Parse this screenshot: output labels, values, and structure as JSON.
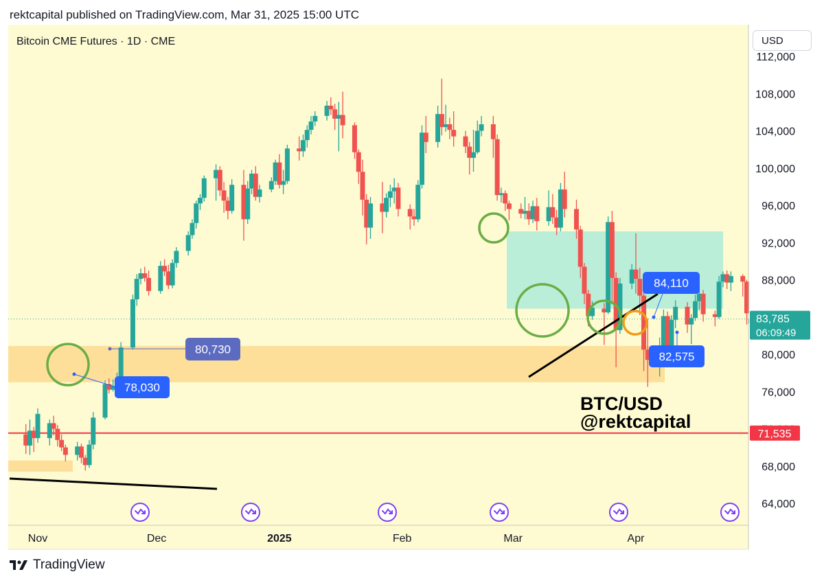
{
  "header": {
    "publish_line": "rektcapital published on TradingView.com, Mar 31, 2025 15:00 UTC"
  },
  "footer": {
    "brand": "TradingView"
  },
  "chart_data": {
    "type": "candlestick",
    "title": "Bitcoin CME Futures · 1D · CME",
    "currency_button": "USD",
    "background": "#fefbd3",
    "y_axis": {
      "range": [
        61000,
        114000
      ],
      "ticks": [
        64000,
        68000,
        72000,
        76000,
        80000,
        84000,
        88000,
        92000,
        96000,
        100000,
        104000,
        108000,
        112000
      ],
      "tick_labels": [
        "64,000",
        "68,000",
        "72,000",
        "76,000",
        "80,000",
        "84,000",
        "88,000",
        "92,000",
        "96,000",
        "100,000",
        "104,000",
        "108,000",
        "112,000"
      ]
    },
    "x_axis": {
      "labels": [
        {
          "text": "Nov",
          "date": "2024-11-01",
          "bold": false
        },
        {
          "text": "Dec",
          "date": "2024-12-01",
          "bold": false
        },
        {
          "text": "2025",
          "date": "2025-01-01",
          "bold": true
        },
        {
          "text": "Feb",
          "date": "2025-02-01",
          "bold": false
        },
        {
          "text": "Mar",
          "date": "2025-03-01",
          "bold": false
        },
        {
          "text": "Apr",
          "date": "2025-04-01",
          "bold": false
        }
      ]
    },
    "candles": [
      {
        "date": "2024-10-29",
        "o": 71400,
        "h": 72500,
        "c": 70200,
        "l": 69300
      },
      {
        "date": "2024-10-30",
        "o": 70200,
        "h": 73000,
        "c": 71800,
        "l": 69200
      },
      {
        "date": "2024-10-31",
        "o": 71800,
        "h": 72200,
        "c": 71000,
        "l": 69500
      },
      {
        "date": "2024-11-01",
        "o": 71000,
        "h": 74200,
        "c": 73600,
        "l": 70500
      },
      {
        "date": "2024-11-04",
        "o": 71000,
        "h": 73000,
        "c": 72600,
        "l": 70200
      },
      {
        "date": "2024-11-05",
        "o": 72600,
        "h": 73400,
        "c": 72000,
        "l": 71300
      },
      {
        "date": "2024-11-06",
        "o": 72000,
        "h": 72400,
        "c": 70800,
        "l": 70100
      },
      {
        "date": "2024-11-07",
        "o": 70800,
        "h": 71400,
        "c": 70000,
        "l": 69600
      },
      {
        "date": "2024-11-08",
        "o": 70000,
        "h": 70300,
        "c": 69200,
        "l": 68500
      },
      {
        "date": "2024-11-11",
        "o": 69200,
        "h": 70600,
        "c": 70100,
        "l": 68600
      },
      {
        "date": "2024-11-12",
        "o": 70100,
        "h": 70400,
        "c": 68900,
        "l": 68300
      },
      {
        "date": "2024-11-13",
        "o": 68900,
        "h": 69200,
        "c": 68100,
        "l": 67500
      },
      {
        "date": "2024-11-14",
        "o": 68100,
        "h": 70800,
        "c": 70300,
        "l": 67800
      },
      {
        "date": "2024-11-15",
        "o": 70300,
        "h": 73800,
        "c": 73200,
        "l": 69800
      },
      {
        "date": "2024-11-18",
        "o": 73200,
        "h": 77200,
        "c": 76800,
        "l": 73000
      },
      {
        "date": "2024-11-19",
        "o": 76800,
        "h": 77400,
        "c": 76200,
        "l": 75800
      },
      {
        "date": "2024-11-20",
        "o": 76200,
        "h": 77300,
        "c": 76600,
        "l": 76000
      },
      {
        "date": "2024-11-21",
        "o": 76600,
        "h": 78030,
        "c": 77100,
        "l": 76200
      },
      {
        "date": "2024-11-22",
        "o": 77100,
        "h": 81300,
        "c": 80730,
        "l": 76900
      },
      {
        "date": "2024-11-25",
        "o": 80730,
        "h": 86400,
        "c": 85900,
        "l": 80500
      },
      {
        "date": "2024-11-26",
        "o": 85900,
        "h": 88600,
        "c": 88100,
        "l": 85200
      },
      {
        "date": "2024-11-27",
        "o": 88100,
        "h": 89200,
        "c": 88700,
        "l": 87500
      },
      {
        "date": "2024-11-28",
        "o": 88700,
        "h": 89400,
        "c": 88200,
        "l": 87800
      },
      {
        "date": "2024-11-29",
        "o": 88200,
        "h": 89000,
        "c": 86800,
        "l": 86300
      },
      {
        "date": "2024-12-02",
        "o": 86800,
        "h": 90000,
        "c": 89500,
        "l": 86500
      },
      {
        "date": "2024-12-03",
        "o": 89500,
        "h": 90200,
        "c": 88900,
        "l": 88400
      },
      {
        "date": "2024-12-04",
        "o": 88900,
        "h": 89600,
        "c": 87400,
        "l": 87000
      },
      {
        "date": "2024-12-05",
        "o": 87400,
        "h": 90200,
        "c": 89800,
        "l": 87100
      },
      {
        "date": "2024-12-06",
        "o": 89800,
        "h": 91500,
        "c": 91100,
        "l": 89300
      },
      {
        "date": "2024-12-09",
        "o": 91100,
        "h": 93200,
        "c": 92800,
        "l": 90600
      },
      {
        "date": "2024-12-10",
        "o": 92800,
        "h": 94500,
        "c": 94100,
        "l": 92400
      },
      {
        "date": "2024-12-11",
        "o": 94100,
        "h": 96500,
        "c": 96200,
        "l": 93500
      },
      {
        "date": "2024-12-12",
        "o": 96200,
        "h": 97200,
        "c": 96800,
        "l": 95500
      },
      {
        "date": "2024-12-13",
        "o": 96800,
        "h": 99200,
        "c": 98900,
        "l": 96400
      },
      {
        "date": "2024-12-16",
        "o": 98900,
        "h": 100400,
        "c": 99800,
        "l": 96500
      },
      {
        "date": "2024-12-17",
        "o": 99800,
        "h": 100200,
        "c": 97600,
        "l": 97000
      },
      {
        "date": "2024-12-18",
        "o": 97600,
        "h": 98500,
        "c": 96500,
        "l": 95200
      },
      {
        "date": "2024-12-19",
        "o": 96500,
        "h": 96900,
        "c": 95400,
        "l": 94500
      },
      {
        "date": "2024-12-20",
        "o": 95400,
        "h": 98800,
        "c": 98200,
        "l": 95100
      },
      {
        "date": "2024-12-23",
        "o": 98200,
        "h": 99800,
        "c": 94500,
        "l": 92200
      },
      {
        "date": "2024-12-24",
        "o": 94500,
        "h": 98600,
        "c": 97800,
        "l": 94000
      },
      {
        "date": "2024-12-25",
        "o": 97800,
        "h": 99800,
        "c": 99400,
        "l": 97200
      },
      {
        "date": "2024-12-26",
        "o": 99400,
        "h": 100200,
        "c": 96900,
        "l": 96500
      },
      {
        "date": "2024-12-27",
        "o": 96900,
        "h": 98200,
        "c": 97700,
        "l": 96300
      },
      {
        "date": "2024-12-30",
        "o": 97700,
        "h": 99000,
        "c": 98600,
        "l": 97400
      },
      {
        "date": "2024-12-31",
        "o": 98600,
        "h": 100900,
        "c": 100600,
        "l": 98200
      },
      {
        "date": "2025-01-01",
        "o": 100600,
        "h": 101500,
        "c": 98200,
        "l": 97800
      },
      {
        "date": "2025-01-02",
        "o": 98200,
        "h": 99800,
        "c": 98600,
        "l": 97200
      },
      {
        "date": "2025-01-03",
        "o": 98600,
        "h": 102500,
        "c": 102100,
        "l": 98300
      },
      {
        "date": "2025-01-06",
        "o": 102100,
        "h": 103400,
        "c": 101800,
        "l": 100800
      },
      {
        "date": "2025-01-07",
        "o": 101800,
        "h": 103600,
        "c": 103000,
        "l": 101200
      },
      {
        "date": "2025-01-08",
        "o": 103000,
        "h": 104600,
        "c": 104100,
        "l": 102200
      },
      {
        "date": "2025-01-09",
        "o": 104100,
        "h": 105600,
        "c": 105000,
        "l": 103600
      },
      {
        "date": "2025-01-10",
        "o": 105000,
        "h": 106100,
        "c": 105600,
        "l": 104500
      },
      {
        "date": "2025-01-13",
        "o": 105600,
        "h": 107200,
        "c": 106700,
        "l": 105100
      },
      {
        "date": "2025-01-14",
        "o": 106700,
        "h": 107600,
        "c": 106300,
        "l": 105700
      },
      {
        "date": "2025-01-15",
        "o": 106300,
        "h": 106900,
        "c": 105300,
        "l": 104100
      },
      {
        "date": "2025-01-16",
        "o": 105300,
        "h": 107100,
        "c": 105700,
        "l": 101800
      },
      {
        "date": "2025-01-17",
        "o": 105700,
        "h": 108200,
        "c": 104600,
        "l": 103200
      },
      {
        "date": "2025-01-20",
        "o": 104600,
        "h": 104900,
        "c": 101700,
        "l": 101000
      },
      {
        "date": "2025-01-21",
        "o": 101700,
        "h": 102000,
        "c": 99600,
        "l": 98300
      },
      {
        "date": "2025-01-22",
        "o": 99600,
        "h": 100900,
        "c": 96600,
        "l": 94900
      },
      {
        "date": "2025-01-23",
        "o": 96600,
        "h": 97200,
        "c": 93600,
        "l": 91800
      },
      {
        "date": "2025-01-24",
        "o": 93600,
        "h": 96900,
        "c": 96200,
        "l": 92400
      },
      {
        "date": "2025-01-27",
        "o": 96200,
        "h": 98500,
        "c": 95300,
        "l": 93000
      },
      {
        "date": "2025-01-28",
        "o": 95300,
        "h": 97300,
        "c": 96800,
        "l": 94700
      },
      {
        "date": "2025-01-29",
        "o": 96800,
        "h": 98200,
        "c": 97500,
        "l": 95800
      },
      {
        "date": "2025-01-30",
        "o": 97500,
        "h": 98900,
        "c": 97900,
        "l": 96200
      },
      {
        "date": "2025-01-31",
        "o": 97900,
        "h": 98400,
        "c": 95600,
        "l": 94800
      },
      {
        "date": "2025-02-03",
        "o": 95600,
        "h": 96100,
        "c": 94800,
        "l": 93400
      },
      {
        "date": "2025-02-04",
        "o": 94800,
        "h": 95600,
        "c": 94500,
        "l": 93800
      },
      {
        "date": "2025-02-05",
        "o": 94500,
        "h": 98700,
        "c": 98200,
        "l": 94200
      },
      {
        "date": "2025-02-06",
        "o": 98200,
        "h": 104600,
        "c": 103800,
        "l": 97800
      },
      {
        "date": "2025-02-07",
        "o": 103800,
        "h": 105600,
        "c": 102800,
        "l": 101600
      },
      {
        "date": "2025-02-10",
        "o": 102800,
        "h": 106700,
        "c": 105800,
        "l": 102200
      },
      {
        "date": "2025-02-11",
        "o": 105800,
        "h": 109600,
        "c": 104400,
        "l": 103500
      },
      {
        "date": "2025-02-12",
        "o": 104400,
        "h": 106800,
        "c": 104700,
        "l": 103900
      },
      {
        "date": "2025-02-13",
        "o": 104700,
        "h": 105400,
        "c": 104100,
        "l": 103100
      },
      {
        "date": "2025-02-14",
        "o": 104100,
        "h": 106100,
        "c": 103400,
        "l": 102300
      },
      {
        "date": "2025-02-17",
        "o": 103400,
        "h": 104000,
        "c": 102300,
        "l": 101600
      },
      {
        "date": "2025-02-18",
        "o": 102300,
        "h": 102800,
        "c": 101100,
        "l": 99300
      },
      {
        "date": "2025-02-19",
        "o": 101100,
        "h": 104100,
        "c": 101700,
        "l": 99600
      },
      {
        "date": "2025-02-20",
        "o": 101700,
        "h": 105100,
        "c": 104000,
        "l": 101500
      },
      {
        "date": "2025-02-21",
        "o": 104000,
        "h": 105600,
        "c": 104700,
        "l": 103400
      },
      {
        "date": "2025-02-24",
        "o": 104700,
        "h": 105600,
        "c": 103100,
        "l": 101100
      },
      {
        "date": "2025-02-25",
        "o": 103100,
        "h": 103600,
        "c": 97100,
        "l": 96500
      },
      {
        "date": "2025-02-26",
        "o": 97100,
        "h": 97900,
        "c": 97300,
        "l": 96300
      },
      {
        "date": "2025-02-27",
        "o": 97300,
        "h": 97600,
        "c": 96200,
        "l": 95400
      },
      {
        "date": "2025-02-28",
        "o": 96200,
        "h": 96500,
        "c": 95600,
        "l": 94400
      },
      {
        "date": "2025-03-03",
        "o": 95600,
        "h": 96200,
        "c": 95100,
        "l": 94600
      },
      {
        "date": "2025-03-04",
        "o": 95100,
        "h": 96900,
        "c": 95400,
        "l": 94500
      },
      {
        "date": "2025-03-05",
        "o": 95400,
        "h": 96200,
        "c": 94500,
        "l": 93900
      },
      {
        "date": "2025-03-06",
        "o": 94500,
        "h": 96500,
        "c": 95900,
        "l": 94100
      },
      {
        "date": "2025-03-07",
        "o": 95900,
        "h": 96800,
        "c": 94300,
        "l": 93300
      },
      {
        "date": "2025-03-10",
        "o": 94300,
        "h": 97600,
        "c": 95800,
        "l": 93800
      },
      {
        "date": "2025-03-11",
        "o": 95800,
        "h": 97200,
        "c": 94700,
        "l": 94000
      },
      {
        "date": "2025-03-12",
        "o": 94700,
        "h": 95500,
        "c": 93600,
        "l": 92800
      },
      {
        "date": "2025-03-13",
        "o": 93600,
        "h": 98400,
        "c": 97700,
        "l": 93200
      },
      {
        "date": "2025-03-14",
        "o": 97700,
        "h": 99600,
        "c": 95600,
        "l": 94700
      },
      {
        "date": "2025-03-17",
        "o": 95600,
        "h": 96600,
        "c": 93400,
        "l": 92400
      },
      {
        "date": "2025-03-18",
        "o": 93400,
        "h": 93800,
        "c": 89400,
        "l": 88200
      },
      {
        "date": "2025-03-19",
        "o": 89400,
        "h": 89800,
        "c": 86500,
        "l": 85400
      },
      {
        "date": "2025-03-20",
        "o": 86500,
        "h": 86900,
        "c": 84100,
        "l": 83000
      },
      {
        "date": "2025-03-21",
        "o": 84100,
        "h": 85700,
        "c": 85000,
        "l": 83700
      },
      {
        "date": "2025-03-24",
        "o": 84900,
        "h": 85500,
        "c": 84500,
        "l": 81000
      },
      {
        "date": "2025-03-25",
        "o": 84500,
        "h": 94800,
        "c": 94200,
        "l": 84300
      },
      {
        "date": "2025-03-26",
        "o": 94200,
        "h": 95400,
        "c": 88200,
        "l": 85600
      },
      {
        "date": "2025-03-27",
        "o": 88200,
        "h": 88800,
        "c": 82600,
        "l": 78600
      },
      {
        "date": "2025-03-28",
        "o": 82600,
        "h": 88200,
        "c": 87600,
        "l": 82200
      },
      {
        "date": "2025-03-31",
        "o": 87600,
        "h": 89700,
        "c": 89100,
        "l": 87000
      },
      {
        "date": "2025-04-01",
        "o": 89100,
        "h": 93000,
        "c": 88100,
        "l": 86500
      },
      {
        "date": "2025-04-02",
        "o": 88100,
        "h": 89300,
        "c": 86300,
        "l": 84200
      },
      {
        "date": "2025-04-03",
        "o": 86300,
        "h": 86700,
        "c": 80500,
        "l": 78200
      },
      {
        "date": "2025-04-04",
        "o": 80500,
        "h": 83800,
        "c": 79400,
        "l": 76500
      },
      {
        "date": "2025-04-07",
        "o": 79400,
        "h": 81800,
        "c": 80900,
        "l": 77600
      },
      {
        "date": "2025-04-08",
        "o": 80900,
        "h": 84800,
        "c": 84100,
        "l": 80400
      },
      {
        "date": "2025-04-09",
        "o": 84100,
        "h": 84600,
        "c": 80400,
        "l": 80000
      },
      {
        "date": "2025-04-10",
        "o": 80400,
        "h": 84200,
        "c": 83700,
        "l": 80200
      },
      {
        "date": "2025-04-11",
        "o": 83700,
        "h": 85800,
        "c": 85100,
        "l": 82800
      },
      {
        "date": "2025-04-14",
        "o": 85100,
        "h": 85600,
        "c": 83200,
        "l": 82300
      },
      {
        "date": "2025-04-15",
        "o": 83200,
        "h": 84300,
        "c": 83900,
        "l": 81100
      },
      {
        "date": "2025-04-16",
        "o": 83900,
        "h": 86400,
        "c": 85700,
        "l": 83600
      },
      {
        "date": "2025-04-17",
        "o": 85700,
        "h": 87200,
        "c": 86500,
        "l": 84700
      },
      {
        "date": "2025-04-18",
        "o": 86500,
        "h": 86900,
        "c": 84300,
        "l": 83500
      },
      {
        "date": "2025-04-21",
        "o": 84300,
        "h": 84700,
        "c": 84000,
        "l": 83000
      },
      {
        "date": "2025-04-22",
        "o": 84000,
        "h": 88400,
        "c": 87800,
        "l": 83800
      },
      {
        "date": "2025-04-23",
        "o": 87800,
        "h": 88900,
        "c": 88600,
        "l": 87200
      },
      {
        "date": "2025-04-24",
        "o": 88600,
        "h": 89000,
        "c": 87700,
        "l": 87000
      },
      {
        "date": "2025-04-25",
        "o": 87700,
        "h": 88900,
        "c": 88400,
        "l": 86800
      },
      {
        "date": "2025-04-28",
        "o": 88400,
        "h": 88600,
        "c": 87800,
        "l": 86200
      },
      {
        "date": "2025-04-29",
        "o": 87800,
        "h": 88000,
        "c": 84400,
        "l": 83200
      },
      {
        "date": "2025-04-30",
        "o": 83300,
        "h": 84400,
        "c": 83785,
        "l": 81700
      }
    ],
    "price_labels": [
      {
        "text": "80,730",
        "price": 80730,
        "style": "muted"
      },
      {
        "text": "78,030",
        "price": 78030,
        "style": "blue"
      },
      {
        "text": "84,110",
        "price": 84110,
        "style": "blue"
      },
      {
        "text": "82,575",
        "price": 82575,
        "style": "blue"
      }
    ],
    "current_price": {
      "value": 83785,
      "text": "83,785",
      "countdown": "06:09:49",
      "color": "#26a69a"
    },
    "horizontal_line": {
      "value": 71535,
      "text": "71,535",
      "color": "#f23645"
    },
    "zones": [
      {
        "name": "support",
        "from": 77000,
        "to": 80900,
        "color": "#fddc93"
      },
      {
        "name": "range",
        "from": 84900,
        "to": 93200,
        "color": "#b3ecd8"
      },
      {
        "name": "low-base",
        "from": 67400,
        "to": 68600,
        "color": "#fddc93"
      }
    ],
    "annotation": {
      "line1": "BTC/USD",
      "line2": "@rektcapital"
    },
    "colors": {
      "up": "#26a69a",
      "down": "#ef5350",
      "circle_green": "#6aad45",
      "circle_orange": "#f29b16",
      "label_blue": "#2962ff",
      "label_muted": "#5c6bc0",
      "event_icon": "#7e3ff2"
    },
    "event_markers": [
      "calendar-event-icon",
      "calendar-event-icon",
      "calendar-event-icon",
      "calendar-event-icon",
      "calendar-event-icon",
      "calendar-event-icon"
    ]
  }
}
